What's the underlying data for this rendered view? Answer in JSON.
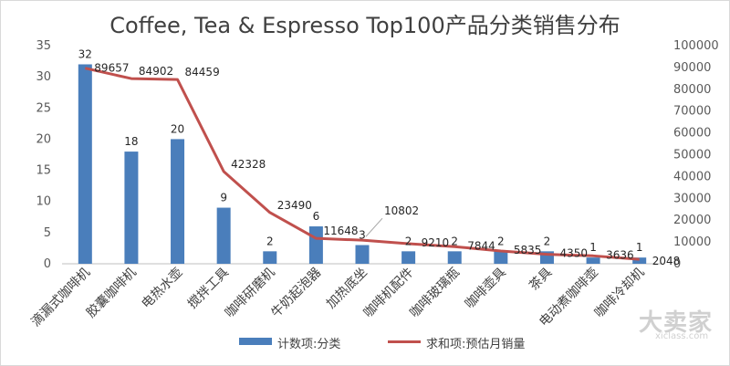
{
  "chart_data": {
    "type": "bar",
    "title": "Coffee, Tea & Espresso Top100产品分类销售分布",
    "categories": [
      "滴漏式咖啡机",
      "胶囊咖啡机",
      "电热水壶",
      "搅拌工具",
      "咖啡研磨机",
      "牛奶起泡器",
      "加热底坐",
      "咖啡机配件",
      "咖啡玻璃瓶",
      "咖啡壶具",
      "茶具",
      "电动煮咖啡壶",
      "咖啡冷却机"
    ],
    "series": [
      {
        "name": "计数项:分类",
        "type": "bar",
        "axis": "left",
        "color": "#4a7ebb",
        "values": [
          32,
          18,
          20,
          9,
          2,
          6,
          3,
          2,
          2,
          2,
          2,
          1,
          1
        ]
      },
      {
        "name": "求和项:预估月销量",
        "type": "line",
        "axis": "right",
        "color": "#c0504d",
        "values": [
          89657,
          84902,
          84459,
          42328,
          23490,
          11648,
          10802,
          9210,
          7844,
          5835,
          4350,
          3636,
          2048
        ]
      }
    ],
    "ylim_left": [
      0,
      35
    ],
    "yticks_left": [
      0,
      5,
      10,
      15,
      20,
      25,
      30,
      35
    ],
    "ylim_right": [
      0,
      100000
    ],
    "yticks_right": [
      0,
      10000,
      20000,
      30000,
      40000,
      50000,
      60000,
      70000,
      80000,
      90000,
      100000
    ],
    "legend_position": "bottom",
    "grid": false
  },
  "watermark": {
    "logo": "大卖家",
    "url": "xiclass.com"
  }
}
